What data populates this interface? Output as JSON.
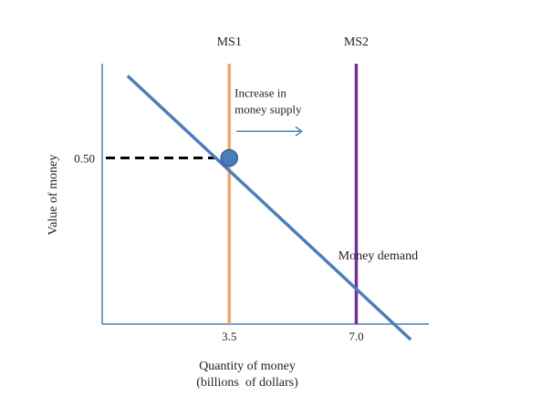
{
  "chart_data": {
    "type": "line",
    "title": "",
    "xlabel_lines": [
      "Quantity of money",
      "(billions  of dollars)"
    ],
    "ylabel": "Value of money",
    "x_ticks": [
      {
        "value": 3.5,
        "label": "3.5"
      },
      {
        "value": 7.0,
        "label": "7.0"
      }
    ],
    "y_ticks": [
      {
        "value": 0.5,
        "label": "0.50"
      }
    ],
    "xlim": [
      0,
      9.0
    ],
    "ylim": [
      0.0,
      0.8
    ],
    "grid": false,
    "series": [
      {
        "name": "MS1",
        "kind": "vertical",
        "x": 3.5,
        "color": "#f4a460"
      },
      {
        "name": "MS2",
        "kind": "vertical",
        "x": 7.0,
        "color": "#7030a0"
      },
      {
        "name": "Money demand",
        "kind": "line",
        "x": [
          0.7,
          6.1,
          8.5
        ],
        "y": [
          0.747,
          0.2,
          -0.047
        ],
        "color": "#4a7ebb"
      }
    ],
    "equilibrium": {
      "x": 3.5,
      "y": 0.5,
      "color": "#4a7ebb"
    },
    "annotations": [
      {
        "text_lines": [
          "Increase in",
          "money supply"
        ],
        "arrow": {
          "from_x": 3.7,
          "to_x": 5.5,
          "y": 0.58
        },
        "color": "#4a7ebb"
      }
    ],
    "colors": {
      "axis": "#4a7ebb",
      "dash": "#000000",
      "text": "#222222"
    }
  }
}
